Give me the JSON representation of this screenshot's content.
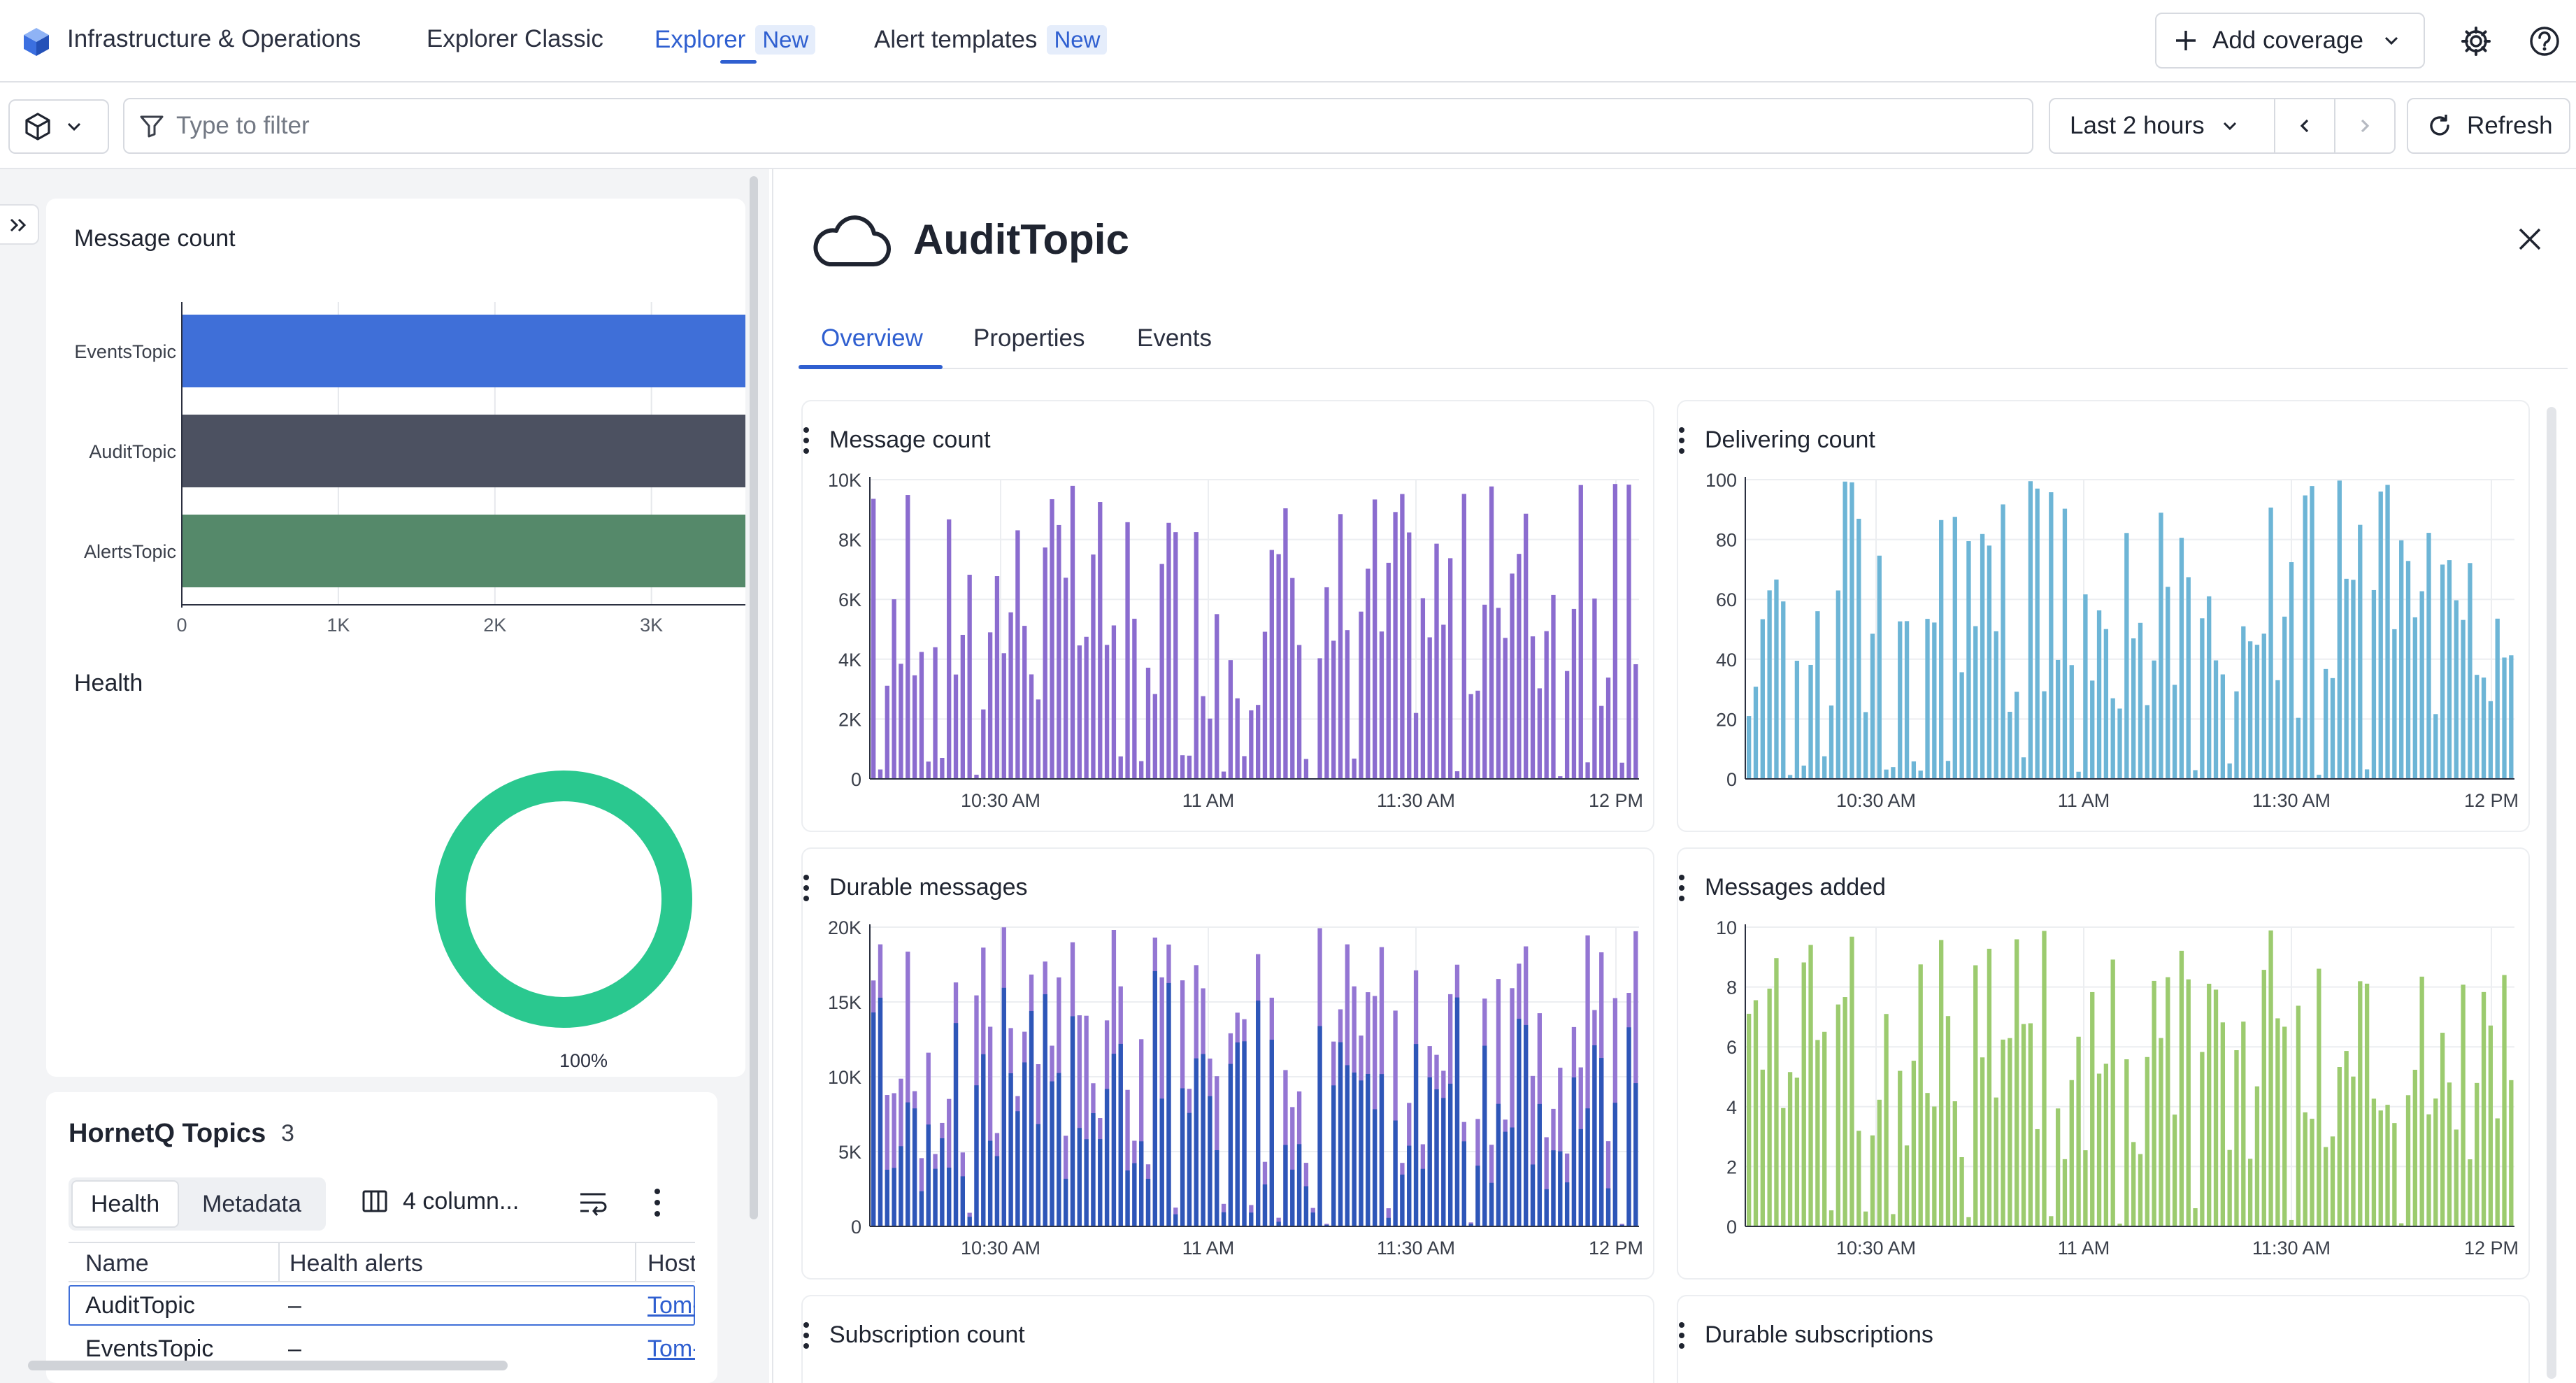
{
  "nav": {
    "app_name": "Infrastructure & Operations",
    "tabs": [
      {
        "label": "Explorer Classic",
        "badge": ""
      },
      {
        "label": "Explorer",
        "badge": "New"
      },
      {
        "label": "Alert templates",
        "badge": "New"
      }
    ],
    "add_coverage_label": "Add coverage"
  },
  "toolbar": {
    "filter_placeholder": "Type to filter",
    "timeframe_label": "Last 2 hours",
    "refresh_label": "Refresh"
  },
  "left": {
    "message_count": {
      "title": "Message count",
      "chart_data": {
        "type": "bar",
        "orientation": "horizontal",
        "categories": [
          "EventsTopic",
          "AuditTopic",
          "AlertsTopic"
        ],
        "values": [
          3600,
          3600,
          3600
        ],
        "colors": [
          "#3f6fd8",
          "#4c5161",
          "#55896a"
        ],
        "xticks": [
          "0",
          "1K",
          "2K",
          "3K"
        ],
        "xlim": [
          0,
          3600
        ]
      }
    },
    "health": {
      "title": "Health",
      "chart_data": {
        "type": "pie",
        "values": [
          100
        ],
        "label": "100%",
        "color": "#2ac88f"
      }
    },
    "hornetq": {
      "title": "HornetQ Topics",
      "count": "3",
      "subtabs": [
        "Health",
        "Metadata"
      ],
      "columns_label": "4 column...",
      "headers": [
        "Name",
        "Health alerts",
        "Host"
      ],
      "rows": [
        {
          "name": "AuditTopic",
          "alerts": "–",
          "host": "Tom-"
        },
        {
          "name": "EventsTopic",
          "alerts": "–",
          "host": "Tom-"
        }
      ]
    }
  },
  "detail": {
    "title": "AuditTopic",
    "tabs": [
      "Overview",
      "Properties",
      "Events"
    ],
    "charts": [
      {
        "title": "Message count",
        "color": "#8b6ccf",
        "yticks": [
          "10K",
          "8K",
          "6K",
          "4K",
          "2K",
          "0"
        ],
        "ymax": 10000
      },
      {
        "title": "Delivering count",
        "color": "#6db5d6",
        "yticks": [
          "100",
          "80",
          "60",
          "40",
          "20",
          "0"
        ],
        "ymax": 100
      },
      {
        "title": "Durable messages",
        "color": "#9476d3",
        "color2": "#2e56b8",
        "yticks": [
          "20K",
          "15K",
          "10K",
          "5K",
          "0"
        ],
        "ymax": 20000
      },
      {
        "title": "Messages added",
        "color": "#9ccb6f",
        "yticks": [
          "10",
          "8",
          "6",
          "4",
          "2",
          "0"
        ],
        "ymax": 10
      },
      {
        "title": "Subscription count"
      },
      {
        "title": "Durable subscriptions"
      }
    ],
    "xticks": [
      "10:30 AM",
      "11 AM",
      "11:30 AM",
      "12 PM"
    ]
  }
}
